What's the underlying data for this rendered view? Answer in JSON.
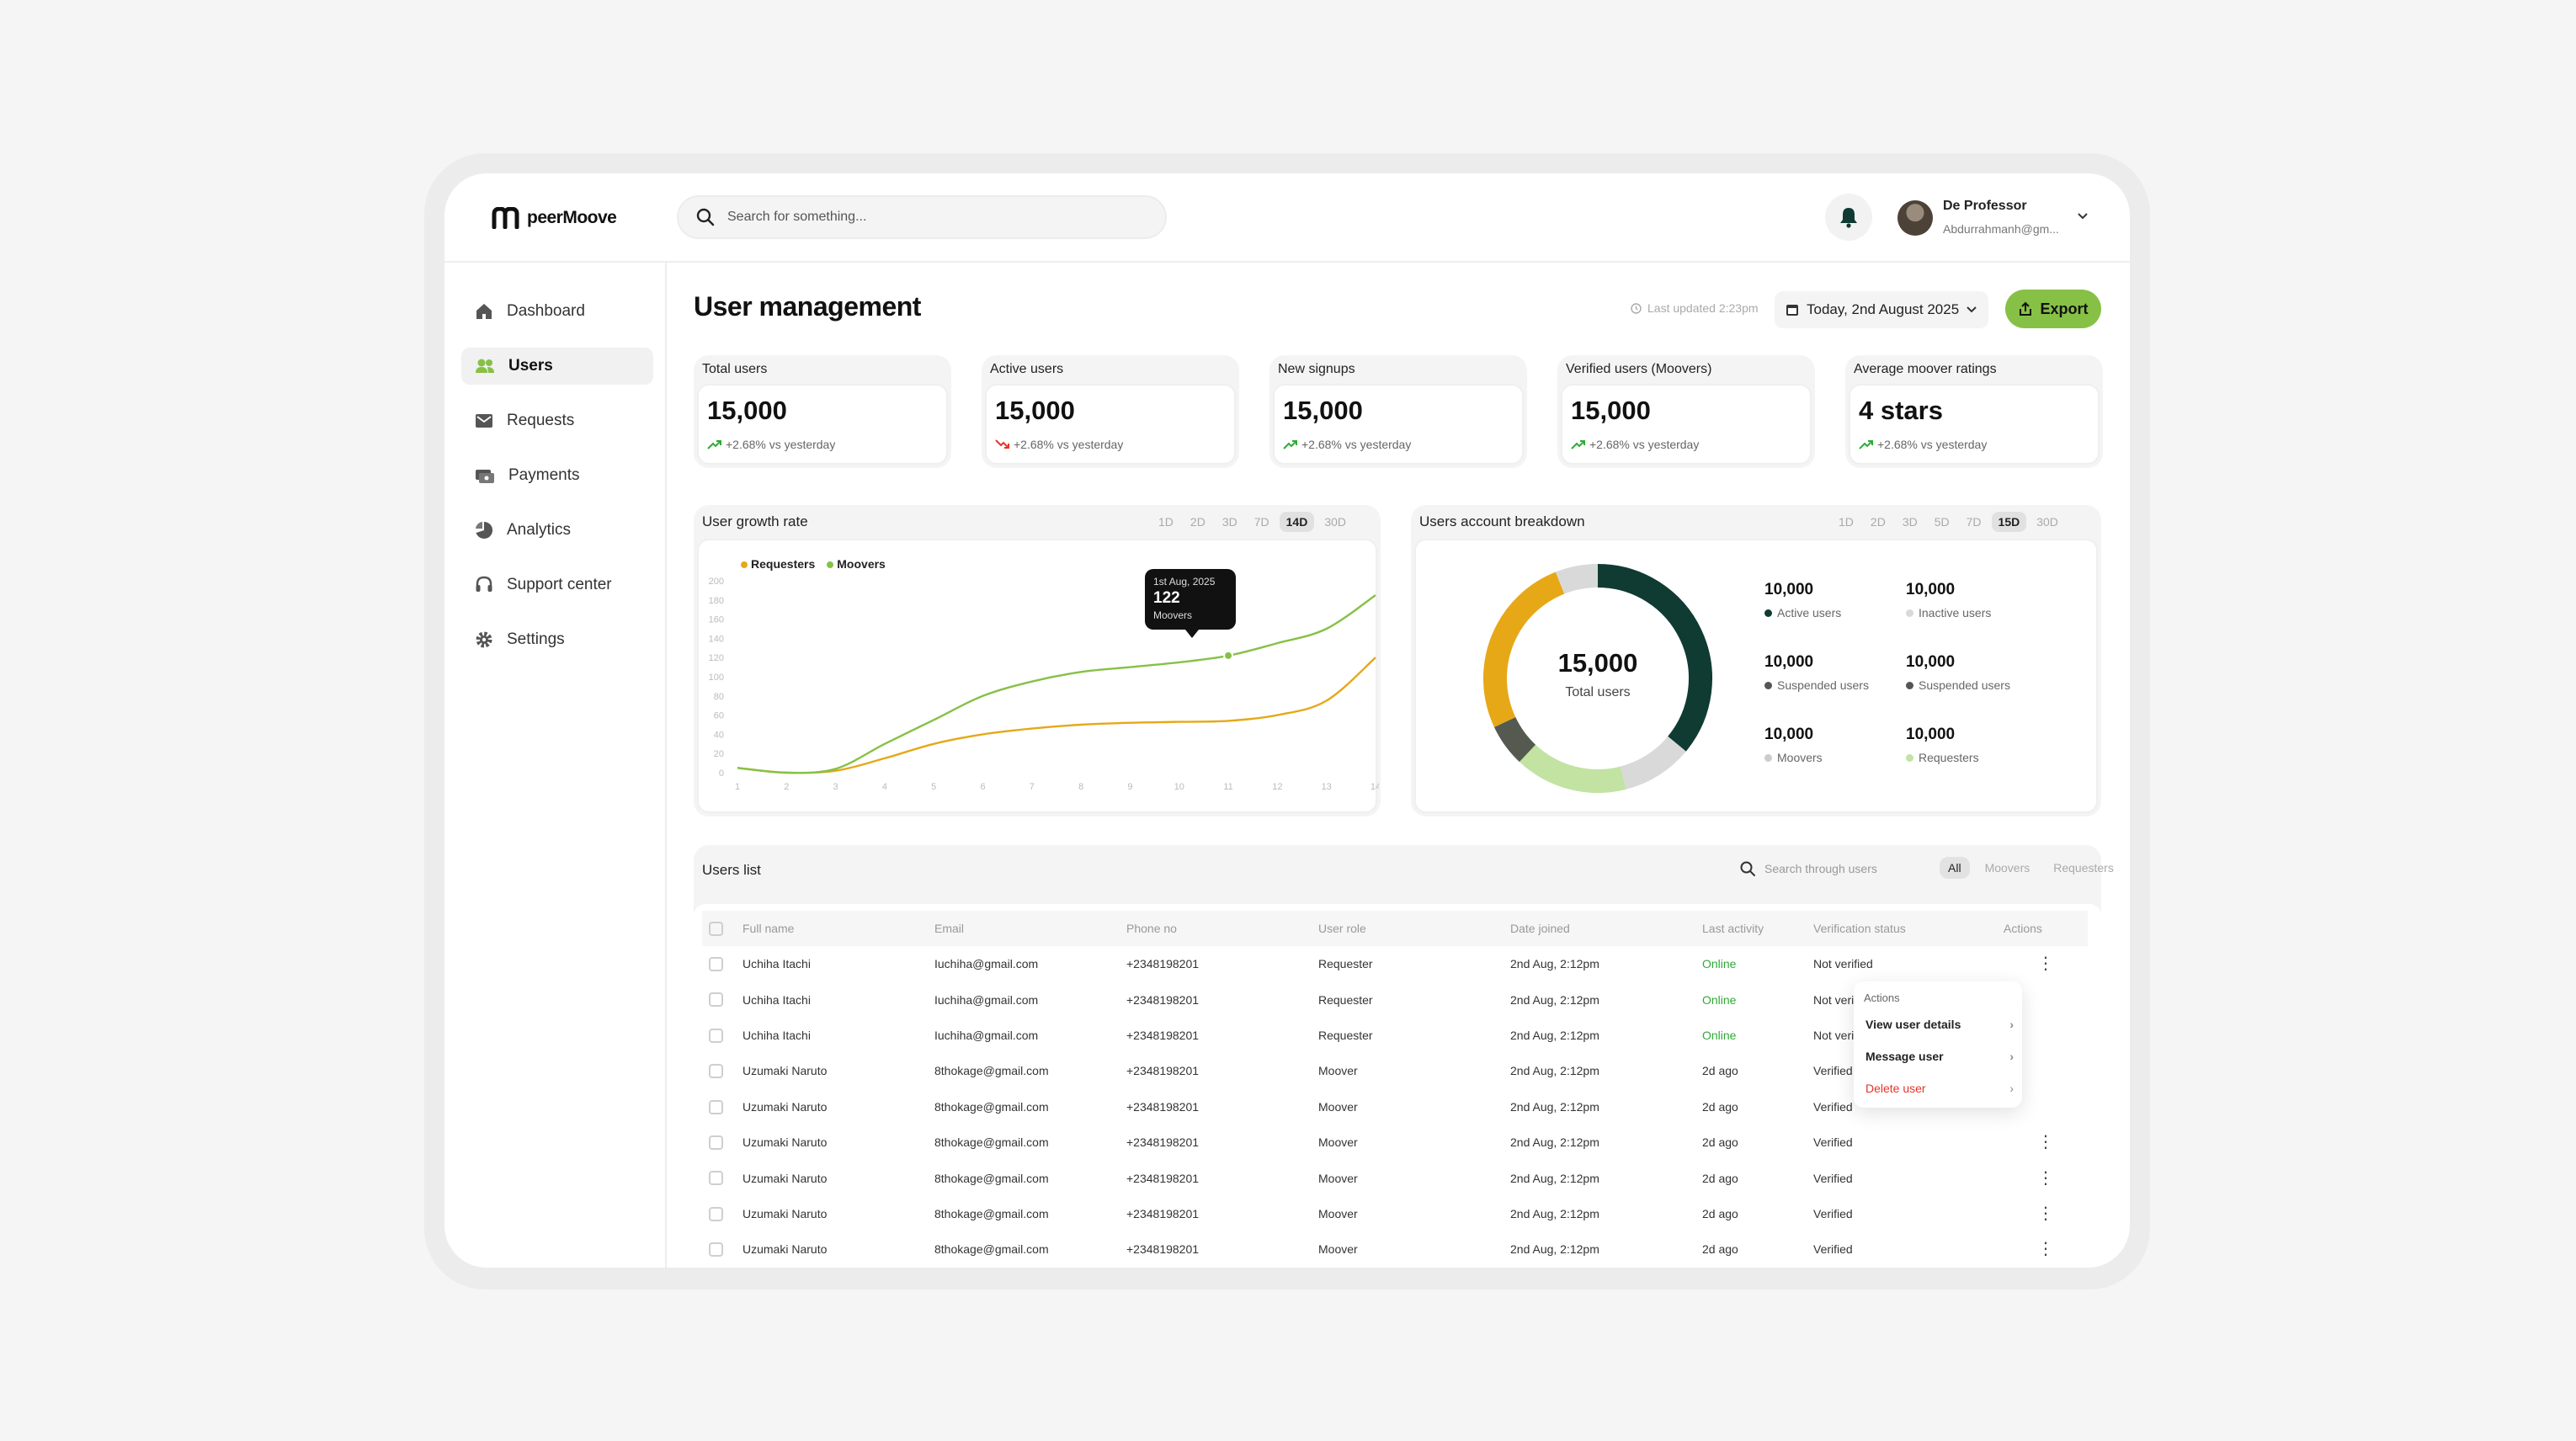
{
  "app": {
    "logo_text": "peerMoove"
  },
  "search": {
    "placeholder": "Search for something..."
  },
  "user": {
    "name": "De Professor",
    "email": "Abdurrahmanh@gm..."
  },
  "sidebar": {
    "items": [
      {
        "label": "Dashboard",
        "icon": "home-icon"
      },
      {
        "label": "Users",
        "icon": "users-icon",
        "active": true
      },
      {
        "label": "Requests",
        "icon": "mail-icon"
      },
      {
        "label": "Payments",
        "icon": "card-icon"
      },
      {
        "label": "Analytics",
        "icon": "pie-chart-icon"
      },
      {
        "label": "Support center",
        "icon": "headset-icon"
      },
      {
        "label": "Settings",
        "icon": "gear-icon"
      }
    ]
  },
  "header": {
    "title": "User management",
    "last_updated": "Last updated 2:23pm",
    "date": "Today, 2nd August 2025",
    "export_label": "Export"
  },
  "stats": [
    {
      "label": "Total users",
      "value": "15,000",
      "change": "+2.68% vs yesterday",
      "trend": "up"
    },
    {
      "label": "Active users",
      "value": "15,000",
      "change": "+2.68% vs yesterday",
      "trend": "down"
    },
    {
      "label": "New signups",
      "value": "15,000",
      "change": "+2.68% vs yesterday",
      "trend": "up"
    },
    {
      "label": "Verified users (Moovers)",
      "value": "15,000",
      "change": "+2.68% vs yesterday",
      "trend": "up"
    },
    {
      "label": "Average moover ratings",
      "value": "4 stars",
      "change": "+2.68% vs yesterday",
      "trend": "up"
    }
  ],
  "growth": {
    "title": "User growth rate",
    "ranges": [
      "1D",
      "2D",
      "3D",
      "7D",
      "14D",
      "30D"
    ],
    "selected": "14D",
    "tooltip": {
      "date": "1st Aug, 2025",
      "value": "122",
      "series": "Moovers"
    }
  },
  "breakdown": {
    "title": "Users account breakdown",
    "ranges": [
      "1D",
      "2D",
      "3D",
      "5D",
      "7D",
      "15D",
      "30D"
    ],
    "selected": "15D",
    "total_value": "15,000",
    "total_label": "Total users",
    "items": [
      {
        "value": "10,000",
        "label": "Active users",
        "color": "#0f3b32"
      },
      {
        "value": "10,000",
        "label": "Inactive users",
        "color": "#d9d9d9"
      },
      {
        "value": "10,000",
        "label": "Suspended users",
        "color": "#555555"
      },
      {
        "value": "10,000",
        "label": "Suspended users",
        "color": "#555555"
      },
      {
        "value": "10,000",
        "label": "Moovers",
        "color": "#cccccc"
      },
      {
        "value": "10,000",
        "label": "Requesters",
        "color": "#c2e3a2"
      }
    ]
  },
  "users_list": {
    "title": "Users list",
    "search_placeholder": "Search through users",
    "filters": [
      "All",
      "Moovers",
      "Requesters"
    ],
    "columns": [
      "Full name",
      "Email",
      "Phone no",
      "User role",
      "Date joined",
      "Last activity",
      "Verification status",
      "Actions"
    ],
    "rows": [
      [
        "Uchiha Itachi",
        "Iuchiha@gmail.com",
        "+2348198201",
        "Requester",
        "2nd Aug, 2:12pm",
        "Online",
        "Not verified"
      ],
      [
        "Uchiha Itachi",
        "Iuchiha@gmail.com",
        "+2348198201",
        "Requester",
        "2nd Aug, 2:12pm",
        "Online",
        "Not verified"
      ],
      [
        "Uchiha Itachi",
        "Iuchiha@gmail.com",
        "+2348198201",
        "Requester",
        "2nd Aug, 2:12pm",
        "Online",
        "Not verified"
      ],
      [
        "Uzumaki Naruto",
        "8thokage@gmail.com",
        "+2348198201",
        "Moover",
        "2nd Aug, 2:12pm",
        "2d ago",
        "Verified"
      ],
      [
        "Uzumaki Naruto",
        "8thokage@gmail.com",
        "+2348198201",
        "Moover",
        "2nd Aug, 2:12pm",
        "2d ago",
        "Verified"
      ],
      [
        "Uzumaki Naruto",
        "8thokage@gmail.com",
        "+2348198201",
        "Moover",
        "2nd Aug, 2:12pm",
        "2d ago",
        "Verified"
      ],
      [
        "Uzumaki Naruto",
        "8thokage@gmail.com",
        "+2348198201",
        "Moover",
        "2nd Aug, 2:12pm",
        "2d ago",
        "Verified"
      ],
      [
        "Uzumaki Naruto",
        "8thokage@gmail.com",
        "+2348198201",
        "Moover",
        "2nd Aug, 2:12pm",
        "2d ago",
        "Verified"
      ],
      [
        "Uzumaki Naruto",
        "8thokage@gmail.com",
        "+2348198201",
        "Moover",
        "2nd Aug, 2:12pm",
        "2d ago",
        "Verified"
      ]
    ]
  },
  "actions_menu": {
    "title": "Actions",
    "items": [
      "View user details",
      "Message user",
      "Delete user"
    ]
  },
  "colors": {
    "accent": "#86c146",
    "dark": "#0f3b32",
    "requesters_line": "#e6a817",
    "moovers_line": "#86c146"
  },
  "chart_data": [
    {
      "type": "line",
      "title": "User growth rate",
      "x": [
        1,
        2,
        3,
        4,
        5,
        6,
        7,
        8,
        9,
        10,
        11,
        12,
        13,
        14
      ],
      "ylim": [
        0,
        200
      ],
      "yticks": [
        0,
        20,
        40,
        60,
        80,
        100,
        120,
        140,
        160,
        180,
        200
      ],
      "series": [
        {
          "name": "Requesters",
          "values": [
            5,
            0,
            2,
            15,
            30,
            40,
            46,
            50,
            52,
            53,
            54,
            60,
            75,
            120
          ]
        },
        {
          "name": "Moovers",
          "values": [
            5,
            0,
            4,
            30,
            55,
            80,
            95,
            105,
            110,
            115,
            122,
            135,
            150,
            185
          ]
        }
      ],
      "legend": "top-left"
    },
    {
      "type": "pie",
      "title": "Users account breakdown",
      "labels": [
        "Active users",
        "Inactive users",
        "Requesters",
        "Suspended users",
        "Requesters",
        "Moovers"
      ],
      "values": [
        36,
        10,
        16,
        6,
        26,
        6
      ],
      "colors": [
        "#0f3b32",
        "#d9d9d9",
        "#c2e3a2",
        "#555a50",
        "#e6a817",
        "#d9d9d9"
      ]
    }
  ]
}
